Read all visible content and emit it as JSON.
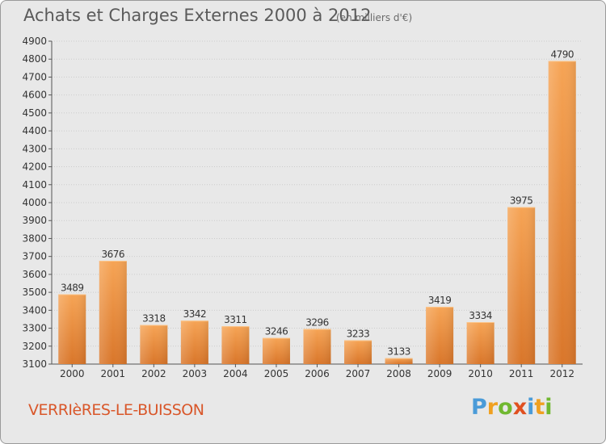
{
  "title": "Achats et Charges Externes 2000 à 2012",
  "subtitle": "(en milliers d'€)",
  "commune": "VERRIèRES-LE-BUISSON",
  "logo": {
    "letters": [
      "P",
      "r",
      "o",
      "x",
      "i",
      "t",
      "i"
    ],
    "colors": [
      "#4a9bd8",
      "#f0a020",
      "#70b830",
      "#e05020",
      "#4a9bd8",
      "#f0a020",
      "#70b830"
    ]
  },
  "colors": {
    "bar_light": "#f6a455",
    "bar_dark": "#d9762a",
    "background": "#e8e8e8",
    "gridline": "#cccccc",
    "title": "#5a5a5a",
    "commune": "#d9572a"
  },
  "chart_data": {
    "type": "bar",
    "title": "Achats et Charges Externes 2000 à 2012",
    "subtitle": "(en milliers d'€)",
    "xlabel": "",
    "ylabel": "",
    "categories": [
      "2000",
      "2001",
      "2002",
      "2003",
      "2004",
      "2005",
      "2006",
      "2007",
      "2008",
      "2009",
      "2010",
      "2011",
      "2012"
    ],
    "values": [
      3489,
      3676,
      3318,
      3342,
      3311,
      3246,
      3296,
      3233,
      3133,
      3419,
      3334,
      3975,
      4790
    ],
    "ylim": [
      3100,
      4900
    ],
    "yticks": [
      3100,
      3200,
      3300,
      3400,
      3500,
      3600,
      3700,
      3800,
      3900,
      4000,
      4100,
      4200,
      4300,
      4400,
      4500,
      4600,
      4700,
      4800,
      4900
    ],
    "grid": true
  }
}
